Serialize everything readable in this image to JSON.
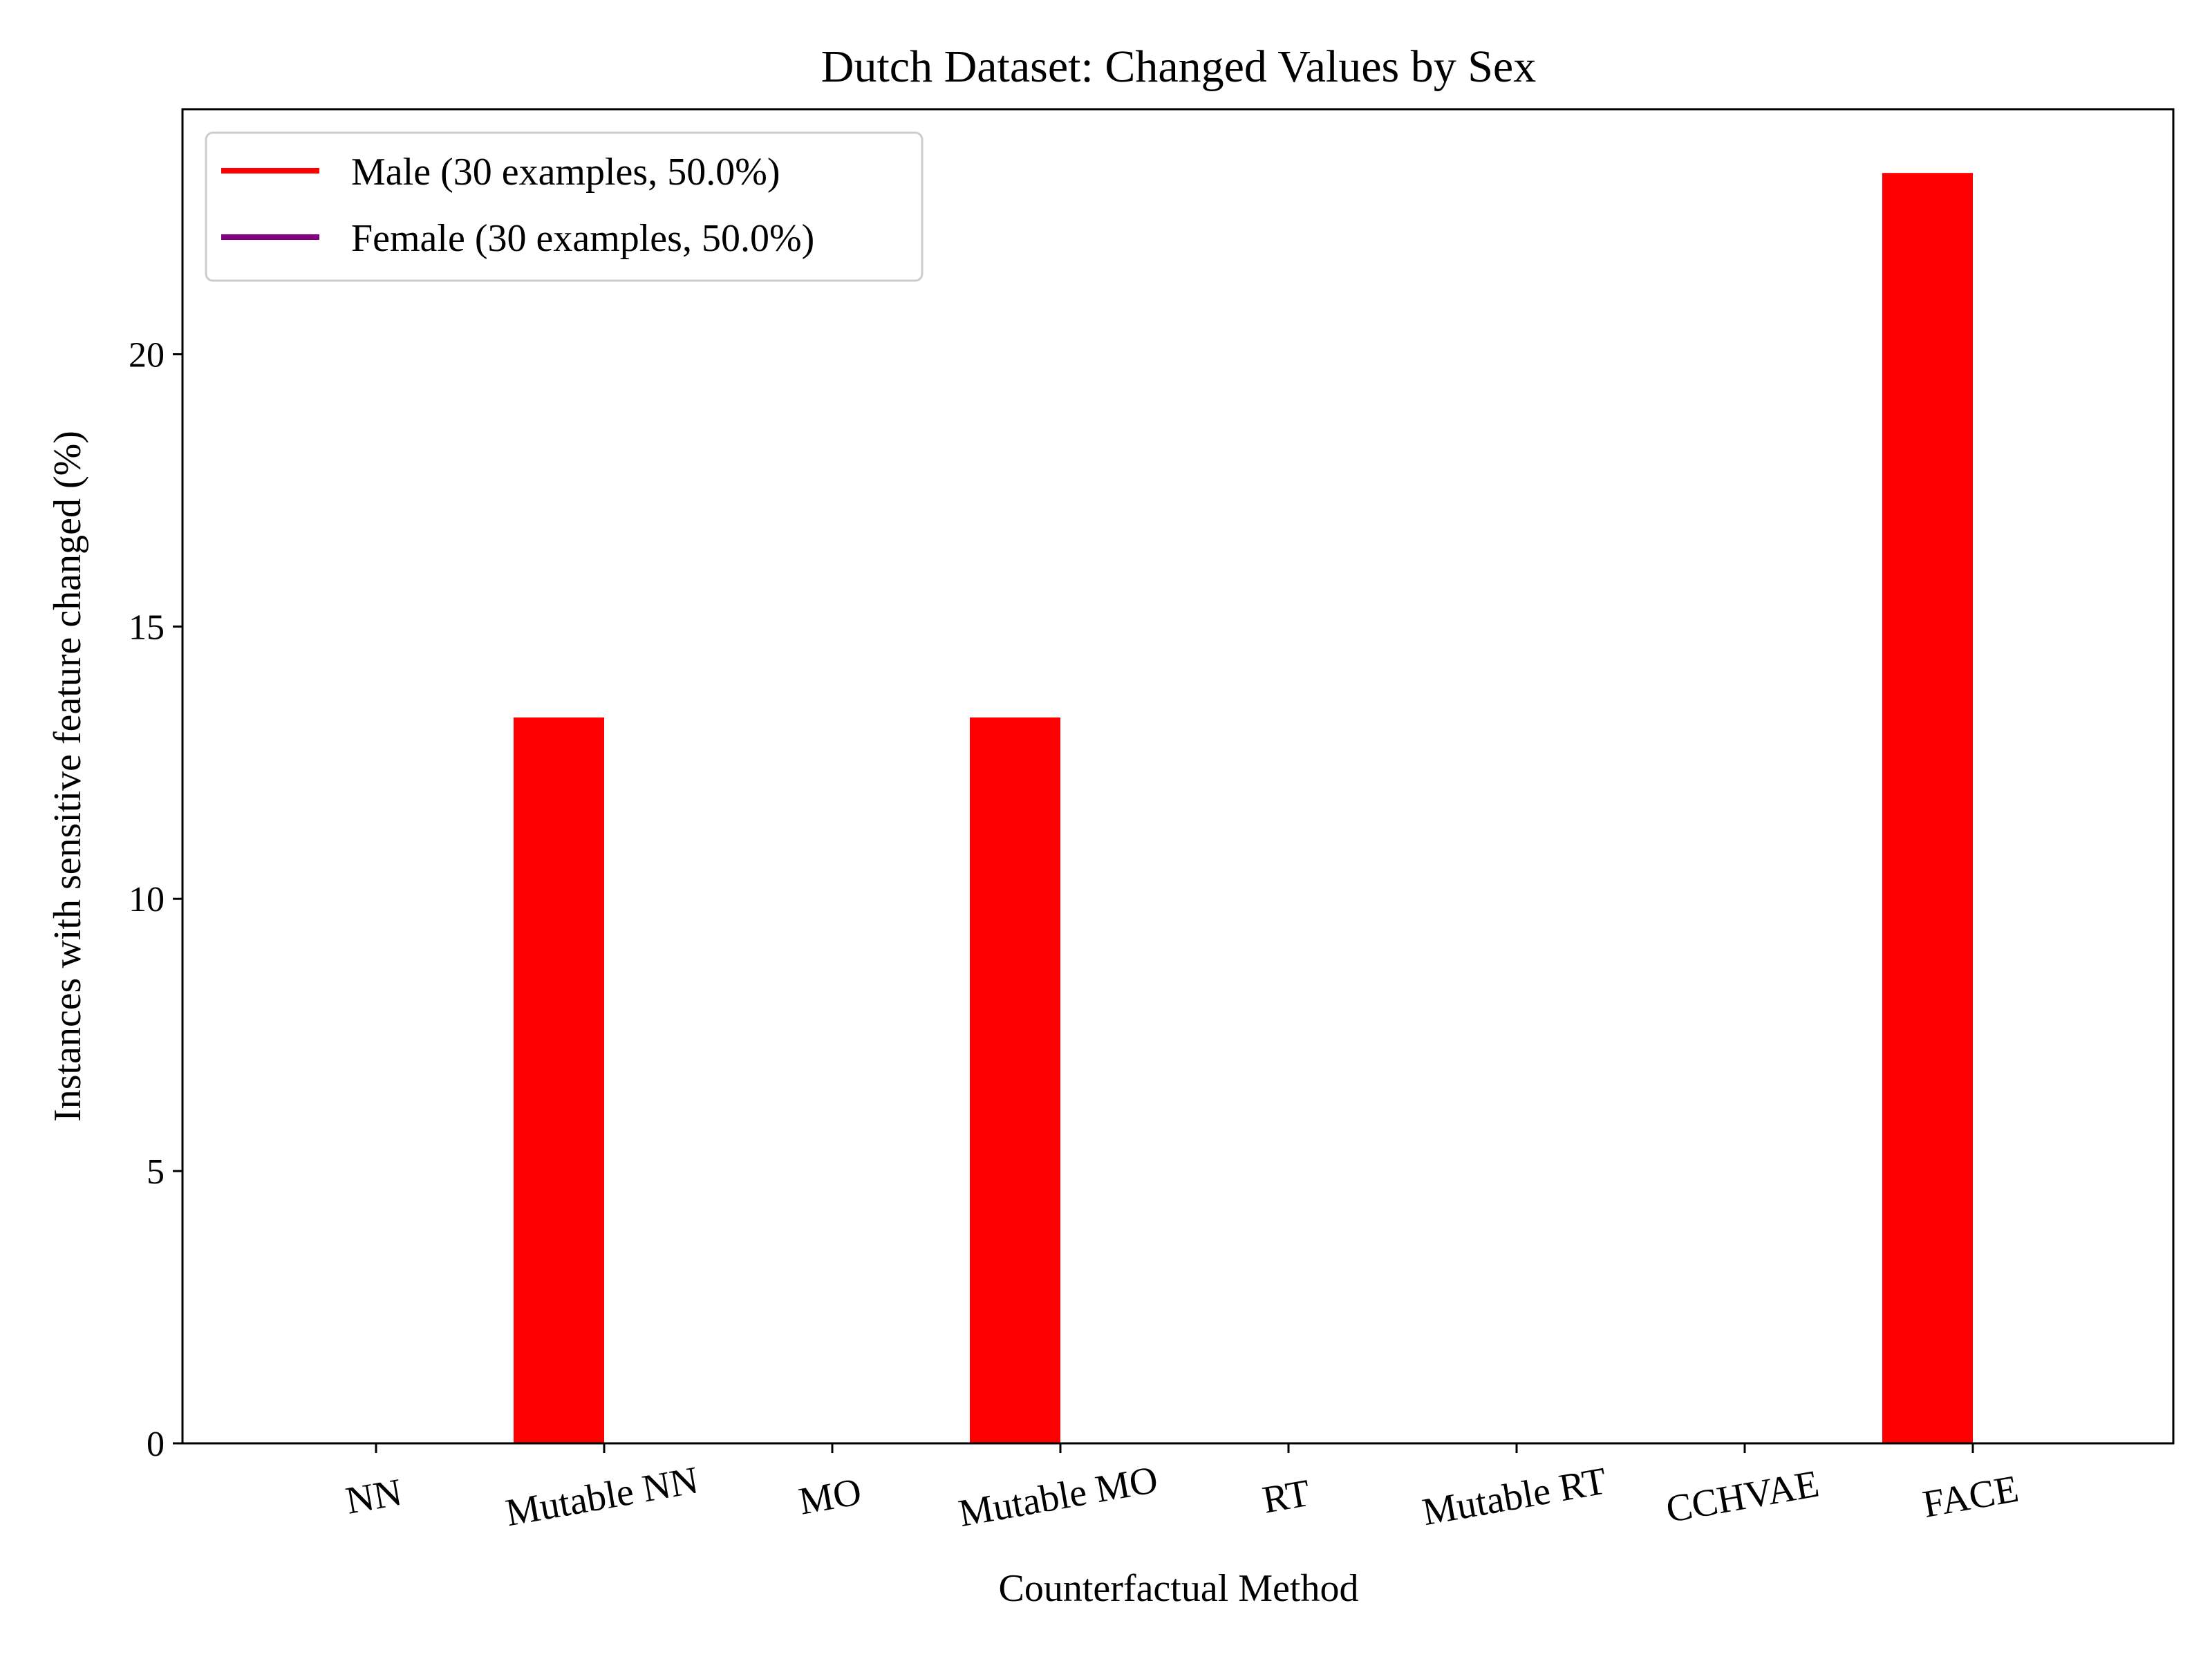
{
  "chart_data": {
    "type": "bar",
    "title": "Dutch Dataset: Changed Values by Sex",
    "xlabel": "Counterfactual Method",
    "ylabel": "Instances with sensitive feature changed (%)",
    "categories": [
      "NN",
      "Mutable NN",
      "MO",
      "Mutable MO",
      "RT",
      "Mutable RT",
      "CCHVAE",
      "FACE"
    ],
    "series": [
      {
        "name": "Male (30 examples, 50.0%)",
        "color": "#ff0000",
        "values": [
          0,
          13.33,
          0,
          13.33,
          0,
          0,
          0,
          23.33
        ]
      },
      {
        "name": "Female (30 examples, 50.0%)",
        "color": "#800080",
        "values": [
          0,
          0,
          0,
          0,
          0,
          0,
          0,
          0
        ]
      }
    ],
    "ylim": [
      0,
      24.5
    ],
    "yticks": [
      0,
      5,
      10,
      15,
      20
    ],
    "grid": false,
    "legend_position": "top-left"
  }
}
